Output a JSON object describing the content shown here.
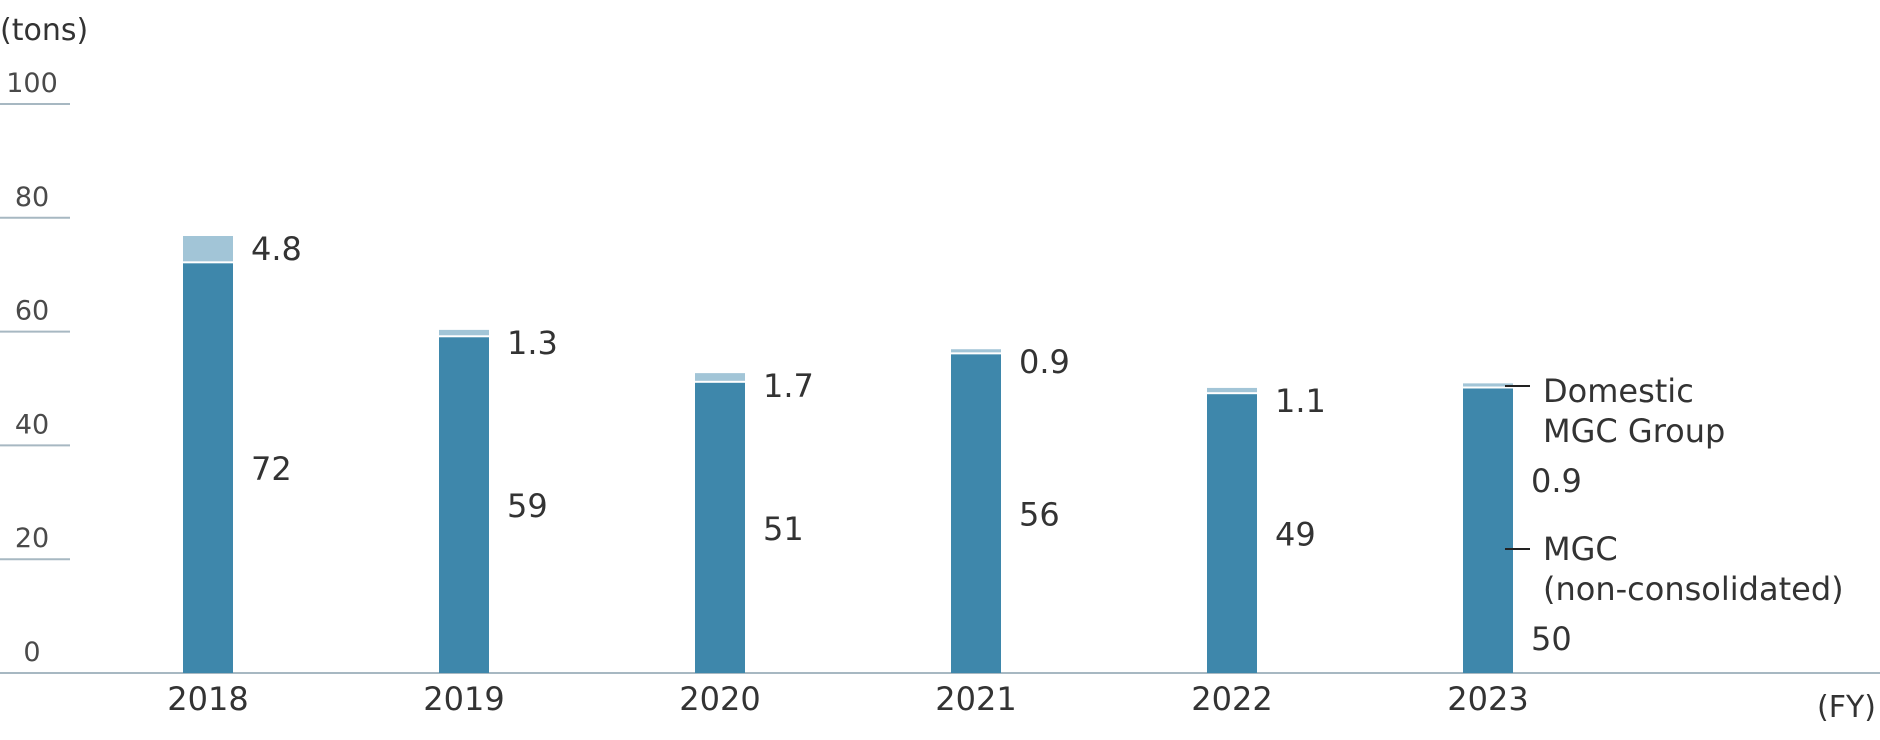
{
  "chart_data": {
    "type": "bar",
    "stacked": true,
    "ylabel": "(tons)",
    "xlabel": "(FY)",
    "ylim": [
      0,
      100
    ],
    "yticks": [
      "0",
      "20",
      "40",
      "60",
      "80",
      "100"
    ],
    "categories": [
      "2018",
      "2019",
      "2020",
      "2021",
      "2022",
      "2023"
    ],
    "series": [
      {
        "name": "MGC (non-consolidated)",
        "values": [
          72,
          59,
          51,
          56,
          49,
          50
        ],
        "labels": [
          "72",
          "59",
          "51",
          "56",
          "49",
          "50"
        ],
        "color": "#3e87ab"
      },
      {
        "name": "Domestic MGC Group",
        "values": [
          4.8,
          1.3,
          1.7,
          0.9,
          1.1,
          0.9
        ],
        "labels": [
          "4.8",
          "1.3",
          "1.7",
          "0.9",
          "1.1",
          "0.9"
        ],
        "color": "#a2c5d7"
      }
    ],
    "legend": {
      "domestic": [
        "Domestic",
        "MGC Group"
      ],
      "mgc": [
        "MGC",
        "(non-consolidated)"
      ],
      "placement": "right of last bar"
    },
    "axis_color": "#a7b8c2"
  }
}
